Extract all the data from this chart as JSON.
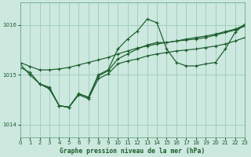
{
  "background_color": "#cce8df",
  "plot_bg_color": "#cce8df",
  "grid_color": "#99ccbb",
  "line_color": "#1a5c2a",
  "xlabel": "Graphe pression niveau de la mer (hPa)",
  "ylim": [
    1013.75,
    1016.45
  ],
  "xlim": [
    0,
    23
  ],
  "yticks": [
    1014,
    1015,
    1016
  ],
  "xticks": [
    0,
    1,
    2,
    3,
    4,
    5,
    6,
    7,
    8,
    9,
    10,
    11,
    12,
    13,
    14,
    15,
    16,
    17,
    18,
    19,
    20,
    21,
    22,
    23
  ],
  "series1_x": [
    0,
    1,
    2,
    3,
    4,
    5,
    6,
    7,
    8,
    9,
    10,
    11,
    12,
    13,
    14,
    15,
    16,
    17,
    18,
    19,
    20,
    21,
    22,
    23
  ],
  "series1_y": [
    1015.25,
    1015.17,
    1015.1,
    1015.1,
    1015.12,
    1015.15,
    1015.2,
    1015.25,
    1015.3,
    1015.35,
    1015.42,
    1015.48,
    1015.54,
    1015.58,
    1015.62,
    1015.65,
    1015.68,
    1015.72,
    1015.75,
    1015.78,
    1015.82,
    1015.87,
    1015.92,
    1016.0
  ],
  "series2_x": [
    2,
    3,
    4,
    5,
    6,
    7,
    8,
    9,
    10,
    11,
    12,
    13,
    14,
    15,
    16,
    17,
    18,
    19,
    20,
    21,
    22,
    23
  ],
  "series2_y": [
    1014.82,
    1014.75,
    1014.38,
    1014.35,
    1014.6,
    1014.52,
    1014.92,
    1015.02,
    1015.22,
    1015.28,
    1015.32,
    1015.38,
    1015.42,
    1015.45,
    1015.48,
    1015.5,
    1015.52,
    1015.55,
    1015.58,
    1015.62,
    1015.68,
    1015.75
  ],
  "series3_x": [
    0,
    1,
    2,
    3,
    4,
    5,
    6,
    7,
    8,
    9,
    10,
    11,
    12,
    13,
    14,
    15,
    16,
    17,
    18,
    19,
    20,
    21,
    22,
    23
  ],
  "series3_y": [
    1015.15,
    1015.05,
    1014.82,
    1014.72,
    1014.38,
    1014.35,
    1014.62,
    1014.55,
    1014.98,
    1015.08,
    1015.32,
    1015.42,
    1015.52,
    1015.6,
    1015.65,
    1015.65,
    1015.68,
    1015.7,
    1015.72,
    1015.75,
    1015.8,
    1015.85,
    1015.9,
    1015.98
  ],
  "series4_x": [
    0,
    1,
    2,
    3,
    4,
    5,
    6,
    7,
    8,
    9,
    10,
    11,
    12,
    13,
    14,
    15,
    16,
    17,
    18,
    19,
    20,
    21,
    22,
    23
  ],
  "series4_y": [
    1015.22,
    1015.0,
    1014.82,
    1014.72,
    1014.38,
    1014.35,
    1014.62,
    1014.55,
    1015.0,
    1015.1,
    1015.52,
    1015.72,
    1015.88,
    1016.12,
    1016.05,
    1015.52,
    1015.25,
    1015.18,
    1015.18,
    1015.22,
    1015.25,
    1015.52,
    1015.85,
    1016.02
  ]
}
